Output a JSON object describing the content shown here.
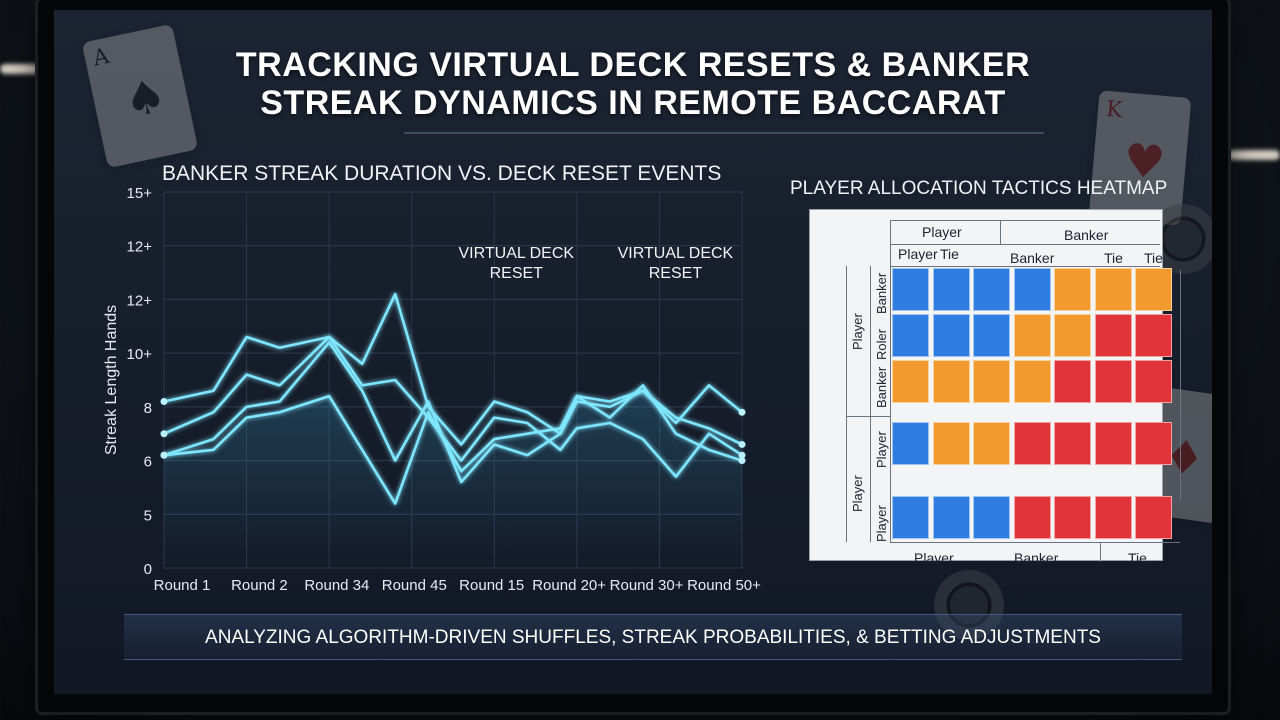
{
  "title": "TRACKING VIRTUAL DECK RESETS & BANKER STREAK DYNAMICS IN REMOTE BACCARAT",
  "footer": "ANALYZING ALGORITHM-DRIVEN SHUFFLES, STREAK PROBABILITIES, & BETTING ADJUSTMENTS",
  "colors": {
    "screen_bg": "#182030",
    "line": "#7fe6ff",
    "reset_line": "#ff3b3b",
    "heat_blue": "#2f7de0",
    "heat_orange": "#f29a2e",
    "heat_red": "#e0343a"
  },
  "decorations": [
    "ace-of-spades-card",
    "king-of-hearts-card",
    "jack-card",
    "casino-chip"
  ],
  "chart_data": [
    {
      "type": "line",
      "title": "BANKER STREAK DURATION vs. DECK RESET EVENTS",
      "ylabel": "Streak Length Hands",
      "xlabel": "",
      "y_tick_labels": [
        "0",
        "5",
        "6",
        "8",
        "10+",
        "12+",
        "12+",
        "15+"
      ],
      "x_tick_labels": [
        "Round 1",
        "Round 2",
        "Round 34",
        "Round 45",
        "Round 15",
        "Round 20+",
        "Round 30+",
        "Round 50+"
      ],
      "ylim": [
        0,
        7
      ],
      "grid": true,
      "x": [
        0,
        0.6,
        1,
        1.4,
        2,
        2.4,
        2.8,
        3.2,
        3.6,
        4,
        4.4,
        4.8,
        5,
        5.4,
        5.8,
        6.2,
        6.6,
        7
      ],
      "series": [
        {
          "values": [
            3.1,
            3.3,
            4.3,
            4.1,
            4.3,
            3.8,
            5.1,
            3.0,
            2.3,
            3.1,
            2.9,
            2.5,
            3.2,
            3.1,
            3.3,
            2.7,
            3.4,
            2.9
          ]
        },
        {
          "values": [
            2.5,
            2.9,
            3.6,
            3.4,
            4.3,
            3.4,
            3.5,
            2.8,
            2.0,
            2.8,
            2.7,
            2.2,
            2.6,
            2.7,
            2.4,
            1.7,
            2.5,
            2.1
          ]
        },
        {
          "values": [
            2.1,
            2.4,
            3.0,
            3.1,
            4.2,
            3.3,
            2.0,
            3.1,
            1.6,
            2.3,
            2.1,
            2.5,
            3.1,
            3.0,
            3.3,
            2.8,
            2.6,
            2.3
          ]
        },
        {
          "values": [
            2.1,
            2.2,
            2.8,
            2.9,
            3.2,
            2.2,
            1.2,
            2.9,
            1.8,
            2.4,
            2.5,
            2.6,
            3.2,
            2.8,
            3.4,
            2.5,
            2.2,
            2.0
          ]
        }
      ],
      "annotations": [
        {
          "text": "VIRTUAL DECK RESET",
          "x": 4.0
        },
        {
          "text": "VIRTUAL DECK RESET",
          "x": 6.0
        }
      ],
      "reset_markers_x": [
        3.35,
        4.05,
        5.55,
        6.15
      ]
    },
    {
      "type": "heatmap",
      "title": "PLAYER ALLOCATION TACTICS HEATMAP",
      "top_group_labels": [
        "Player",
        "Banker"
      ],
      "column_labels": [
        "Player",
        "Tie",
        "Banker",
        "Tie",
        "Tie"
      ],
      "bottom_labels": [
        "Player",
        "Banker",
        "Tie"
      ],
      "left_outer_labels": [
        "Player",
        "Player"
      ],
      "row_labels": [
        "Banker",
        "Roler",
        "Banker",
        "Player",
        "Player"
      ],
      "right_labels": [
        "Tie",
        "Player"
      ],
      "cells": [
        [
          "blue",
          "blue",
          "blue",
          "blue",
          "orange",
          "orange",
          "orange"
        ],
        [
          "blue",
          "blue",
          "blue",
          "orange",
          "orange",
          "red",
          "red"
        ],
        [
          "orange",
          "orange",
          "orange",
          "orange",
          "red",
          "red",
          "red"
        ],
        [
          "blue",
          "orange",
          "orange",
          "red",
          "red",
          "red",
          "red"
        ],
        [
          "blue",
          "blue",
          "blue",
          "red",
          "red",
          "red",
          "red"
        ]
      ]
    }
  ]
}
